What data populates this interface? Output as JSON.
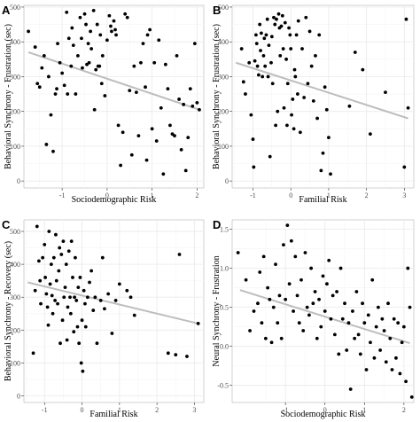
{
  "colors": {
    "panel_bg": "#ffffff",
    "grid_major": "#ebebeb",
    "grid_minor": "#f5f5f5",
    "point": "#000000",
    "fit_line": "#bdbdbd",
    "frame": "#b3b3b3"
  },
  "chart_data": [
    {
      "type": "scatter",
      "panel_label": "A",
      "xlabel": "Sociodemographic Risk",
      "ylabel": "Behavioral Synchrony - Frustration (sec)",
      "xlim": [
        -1.85,
        2.15
      ],
      "ylim": [
        -20,
        505
      ],
      "xticks": [
        -1,
        0,
        1,
        2
      ],
      "yticks": [
        0,
        100,
        200,
        300,
        400,
        500
      ],
      "grid": true,
      "fit_line": [
        [
          -1.75,
          370
        ],
        [
          2.05,
          205
        ]
      ],
      "points": [
        [
          -1.75,
          430
        ],
        [
          -1.6,
          385
        ],
        [
          -1.55,
          280
        ],
        [
          -1.5,
          270
        ],
        [
          -1.45,
          325
        ],
        [
          -1.4,
          360
        ],
        [
          -1.35,
          105
        ],
        [
          -1.3,
          300
        ],
        [
          -1.25,
          190
        ],
        [
          -1.2,
          85
        ],
        [
          -1.15,
          250
        ],
        [
          -1.12,
          265
        ],
        [
          -1.1,
          395
        ],
        [
          -1.05,
          340
        ],
        [
          -1.0,
          310
        ],
        [
          -0.95,
          275
        ],
        [
          -0.9,
          485
        ],
        [
          -0.88,
          250
        ],
        [
          -0.85,
          410
        ],
        [
          -0.8,
          330
        ],
        [
          -0.78,
          440
        ],
        [
          -0.75,
          390
        ],
        [
          -0.7,
          250
        ],
        [
          -0.65,
          360
        ],
        [
          -0.6,
          470
        ],
        [
          -0.57,
          410
        ],
        [
          -0.55,
          325
        ],
        [
          -0.5,
          480
        ],
        [
          -0.47,
          450
        ],
        [
          -0.45,
          335
        ],
        [
          -0.42,
          395
        ],
        [
          -0.4,
          340
        ],
        [
          -0.37,
          430
        ],
        [
          -0.35,
          380
        ],
        [
          -0.3,
          490
        ],
        [
          -0.28,
          205
        ],
        [
          -0.25,
          320
        ],
        [
          -0.22,
          450
        ],
        [
          -0.2,
          330
        ],
        [
          -0.17,
          330
        ],
        [
          -0.15,
          420
        ],
        [
          -0.12,
          280
        ],
        [
          -0.1,
          360
        ],
        [
          -0.05,
          245
        ],
        [
          0.0,
          405
        ],
        [
          0.05,
          475
        ],
        [
          0.08,
          445
        ],
        [
          0.1,
          430
        ],
        [
          0.15,
          460
        ],
        [
          0.18,
          435
        ],
        [
          0.2,
          420
        ],
        [
          0.25,
          160
        ],
        [
          0.3,
          45
        ],
        [
          0.35,
          140
        ],
        [
          0.4,
          480
        ],
        [
          0.45,
          470
        ],
        [
          0.5,
          260
        ],
        [
          0.55,
          75
        ],
        [
          0.6,
          330
        ],
        [
          0.65,
          255
        ],
        [
          0.7,
          130
        ],
        [
          0.75,
          340
        ],
        [
          0.8,
          395
        ],
        [
          0.85,
          270
        ],
        [
          0.88,
          60
        ],
        [
          0.9,
          420
        ],
        [
          0.95,
          435
        ],
        [
          1.0,
          150
        ],
        [
          1.05,
          340
        ],
        [
          1.1,
          115
        ],
        [
          1.15,
          405
        ],
        [
          1.2,
          210
        ],
        [
          1.25,
          20
        ],
        [
          1.3,
          335
        ],
        [
          1.35,
          265
        ],
        [
          1.4,
          160
        ],
        [
          1.45,
          135
        ],
        [
          1.5,
          130
        ],
        [
          1.55,
          360
        ],
        [
          1.6,
          235
        ],
        [
          1.65,
          90
        ],
        [
          1.7,
          220
        ],
        [
          1.75,
          30
        ],
        [
          1.8,
          125
        ],
        [
          1.85,
          265
        ],
        [
          1.9,
          215
        ],
        [
          1.95,
          395
        ],
        [
          2.0,
          225
        ],
        [
          2.05,
          205
        ]
      ]
    },
    {
      "type": "scatter",
      "panel_label": "B",
      "xlabel": "Familial Risk",
      "ylabel": "Behavioral Synchrony - Frustration (sec)",
      "xlim": [
        -1.55,
        3.25
      ],
      "ylim": [
        -20,
        505
      ],
      "xticks": [
        -1,
        0,
        1,
        2,
        3
      ],
      "yticks": [
        0,
        100,
        200,
        300,
        400,
        500
      ],
      "grid": true,
      "fit_line": [
        [
          -1.45,
          340
        ],
        [
          3.1,
          180
        ]
      ],
      "points": [
        [
          -1.3,
          380
        ],
        [
          -1.25,
          285
        ],
        [
          -1.2,
          250
        ],
        [
          -1.1,
          340
        ],
        [
          -1.05,
          190
        ],
        [
          -1.0,
          120
        ],
        [
          -0.98,
          40
        ],
        [
          -0.95,
          345
        ],
        [
          -0.92,
          420
        ],
        [
          -0.9,
          395
        ],
        [
          -0.88,
          330
        ],
        [
          -0.85,
          305
        ],
        [
          -0.82,
          450
        ],
        [
          -0.8,
          375
        ],
        [
          -0.78,
          425
        ],
        [
          -0.75,
          300
        ],
        [
          -0.72,
          360
        ],
        [
          -0.7,
          410
        ],
        [
          -0.68,
          330
        ],
        [
          -0.65,
          420
        ],
        [
          -0.62,
          465
        ],
        [
          -0.6,
          300
        ],
        [
          -0.58,
          390
        ],
        [
          -0.55,
          70
        ],
        [
          -0.52,
          340
        ],
        [
          -0.5,
          415
        ],
        [
          -0.48,
          280
        ],
        [
          -0.45,
          470
        ],
        [
          -0.42,
          450
        ],
        [
          -0.4,
          160
        ],
        [
          -0.38,
          465
        ],
        [
          -0.35,
          200
        ],
        [
          -0.32,
          480
        ],
        [
          -0.3,
          440
        ],
        [
          -0.28,
          360
        ],
        [
          -0.25,
          445
        ],
        [
          -0.22,
          475
        ],
        [
          -0.2,
          380
        ],
        [
          -0.18,
          210
        ],
        [
          -0.15,
          455
        ],
        [
          -0.12,
          350
        ],
        [
          -0.1,
          160
        ],
        [
          -0.08,
          280
        ],
        [
          -0.05,
          440
        ],
        [
          -0.02,
          420
        ],
        [
          0.0,
          380
        ],
        [
          0.02,
          190
        ],
        [
          0.05,
          235
        ],
        [
          0.08,
          150
        ],
        [
          0.1,
          320
        ],
        [
          0.12,
          300
        ],
        [
          0.15,
          420
        ],
        [
          0.18,
          250
        ],
        [
          0.2,
          460
        ],
        [
          0.25,
          140
        ],
        [
          0.3,
          380
        ],
        [
          0.35,
          240
        ],
        [
          0.4,
          470
        ],
        [
          0.45,
          280
        ],
        [
          0.5,
          430
        ],
        [
          0.55,
          330
        ],
        [
          0.6,
          230
        ],
        [
          0.65,
          360
        ],
        [
          0.7,
          180
        ],
        [
          0.75,
          420
        ],
        [
          0.8,
          30
        ],
        [
          0.85,
          80
        ],
        [
          0.9,
          270
        ],
        [
          0.95,
          205
        ],
        [
          1.0,
          125
        ],
        [
          1.05,
          20
        ],
        [
          1.55,
          215
        ],
        [
          1.7,
          370
        ],
        [
          1.9,
          320
        ],
        [
          2.1,
          135
        ],
        [
          2.5,
          255
        ],
        [
          3.0,
          40
        ],
        [
          3.05,
          465
        ],
        [
          3.1,
          210
        ]
      ]
    },
    {
      "type": "scatter",
      "panel_label": "C",
      "xlabel": "Familial Risk",
      "ylabel": "Behavioral Synchrony - Recovery (sec)",
      "xlim": [
        -1.55,
        3.25
      ],
      "ylim": [
        -20,
        535
      ],
      "xticks": [
        -1,
        0,
        1,
        2,
        3
      ],
      "yticks": [
        0,
        100,
        200,
        300,
        400,
        500
      ],
      "grid": true,
      "fit_line": [
        [
          -1.45,
          345
        ],
        [
          3.1,
          220
        ]
      ],
      "points": [
        [
          -1.3,
          130
        ],
        [
          -1.25,
          320
        ],
        [
          -1.2,
          515
        ],
        [
          -1.15,
          410
        ],
        [
          -1.12,
          350
        ],
        [
          -1.1,
          280
        ],
        [
          -1.05,
          420
        ],
        [
          -1.0,
          460
        ],
        [
          -0.98,
          360
        ],
        [
          -0.95,
          310
        ],
        [
          -0.92,
          270
        ],
        [
          -0.9,
          215
        ],
        [
          -0.88,
          500
        ],
        [
          -0.85,
          340
        ],
        [
          -0.82,
          400
        ],
        [
          -0.8,
          305
        ],
        [
          -0.78,
          250
        ],
        [
          -0.75,
          420
        ],
        [
          -0.72,
          290
        ],
        [
          -0.7,
          490
        ],
        [
          -0.68,
          350
        ],
        [
          -0.65,
          280
        ],
        [
          -0.62,
          380
        ],
        [
          -0.6,
          450
        ],
        [
          -0.58,
          160
        ],
        [
          -0.55,
          430
        ],
        [
          -0.52,
          230
        ],
        [
          -0.5,
          470
        ],
        [
          -0.48,
          300
        ],
        [
          -0.45,
          330
        ],
        [
          -0.42,
          400
        ],
        [
          -0.4,
          170
        ],
        [
          -0.38,
          270
        ],
        [
          -0.35,
          440
        ],
        [
          -0.32,
          300
        ],
        [
          -0.3,
          250
        ],
        [
          -0.28,
          470
        ],
        [
          -0.25,
          360
        ],
        [
          -0.22,
          195
        ],
        [
          -0.2,
          300
        ],
        [
          -0.18,
          420
        ],
        [
          -0.15,
          290
        ],
        [
          -0.12,
          210
        ],
        [
          -0.1,
          330
        ],
        [
          -0.08,
          160
        ],
        [
          -0.05,
          360
        ],
        [
          -0.02,
          100
        ],
        [
          0.0,
          230
        ],
        [
          0.02,
          75
        ],
        [
          0.05,
          320
        ],
        [
          0.08,
          280
        ],
        [
          0.1,
          210
        ],
        [
          0.15,
          300
        ],
        [
          0.2,
          345
        ],
        [
          0.25,
          380
        ],
        [
          0.3,
          260
        ],
        [
          0.35,
          300
        ],
        [
          0.4,
          160
        ],
        [
          0.5,
          290
        ],
        [
          0.55,
          420
        ],
        [
          0.6,
          265
        ],
        [
          0.7,
          310
        ],
        [
          0.8,
          190
        ],
        [
          0.9,
          290
        ],
        [
          1.0,
          340
        ],
        [
          1.2,
          320
        ],
        [
          1.3,
          300
        ],
        [
          1.4,
          245
        ],
        [
          2.3,
          130
        ],
        [
          2.5,
          125
        ],
        [
          2.6,
          430
        ],
        [
          2.8,
          120
        ],
        [
          3.1,
          220
        ]
      ]
    },
    {
      "type": "scatter",
      "panel_label": "D",
      "xlabel": "Sociodemographic Risk",
      "ylabel": "Neural Synchrony - Frustration",
      "xlim": [
        -2.35,
        2.25
      ],
      "ylim": [
        -0.72,
        1.62
      ],
      "xticks": [
        -1,
        0,
        1,
        2
      ],
      "yticks": [
        -0.5,
        0.0,
        0.5,
        1.0,
        1.5
      ],
      "ytick_labels": [
        "-0.5",
        "0.0",
        "0.5",
        "1.0",
        "1.5"
      ],
      "grid": true,
      "fit_line": [
        [
          -2.15,
          0.72
        ],
        [
          2.15,
          0.04
        ]
      ],
      "points": [
        [
          -2.2,
          1.2
        ],
        [
          -2.0,
          0.85
        ],
        [
          -1.9,
          0.2
        ],
        [
          -1.8,
          0.45
        ],
        [
          -1.7,
          0.55
        ],
        [
          -1.65,
          0.95
        ],
        [
          -1.6,
          0.3
        ],
        [
          -1.55,
          1.15
        ],
        [
          -1.5,
          0.1
        ],
        [
          -1.45,
          0.75
        ],
        [
          -1.4,
          0.6
        ],
        [
          -1.35,
          0.05
        ],
        [
          -1.3,
          0.5
        ],
        [
          -1.25,
          1.05
        ],
        [
          -1.2,
          0.3
        ],
        [
          -1.15,
          0.65
        ],
        [
          -1.1,
          0.1
        ],
        [
          -1.05,
          1.3
        ],
        [
          -1.0,
          0.6
        ],
        [
          -0.95,
          1.55
        ],
        [
          -0.9,
          0.8
        ],
        [
          -0.85,
          1.35
        ],
        [
          -0.8,
          0.45
        ],
        [
          -0.75,
          1.15
        ],
        [
          -0.7,
          0.65
        ],
        [
          -0.65,
          0.3
        ],
        [
          -0.6,
          0.85
        ],
        [
          -0.55,
          0.2
        ],
        [
          -0.5,
          1.2
        ],
        [
          -0.45,
          0.5
        ],
        [
          -0.4,
          0.4
        ],
        [
          -0.35,
          1.0
        ],
        [
          -0.3,
          0.55
        ],
        [
          -0.25,
          0.7
        ],
        [
          -0.2,
          0.1
        ],
        [
          -0.15,
          0.6
        ],
        [
          -0.1,
          0.25
        ],
        [
          -0.05,
          0.9
        ],
        [
          0.0,
          0.45
        ],
        [
          0.05,
          0.8
        ],
        [
          0.1,
          1.1
        ],
        [
          0.15,
          0.35
        ],
        [
          0.2,
          0.65
        ],
        [
          0.25,
          0.15
        ],
        [
          0.3,
          0.7
        ],
        [
          0.35,
          -0.1
        ],
        [
          0.4,
          1.0
        ],
        [
          0.45,
          0.35
        ],
        [
          0.5,
          0.55
        ],
        [
          0.55,
          -0.05
        ],
        [
          0.6,
          0.3
        ],
        [
          0.65,
          -0.55
        ],
        [
          0.7,
          0.45
        ],
        [
          0.75,
          0.1
        ],
        [
          0.8,
          0.7
        ],
        [
          0.85,
          0.15
        ],
        [
          0.9,
          -0.1
        ],
        [
          0.95,
          0.55
        ],
        [
          1.0,
          0.3
        ],
        [
          1.05,
          -0.3
        ],
        [
          1.1,
          0.4
        ],
        [
          1.15,
          0.05
        ],
        [
          1.2,
          0.85
        ],
        [
          1.25,
          -0.15
        ],
        [
          1.3,
          0.25
        ],
        [
          1.35,
          0.5
        ],
        [
          1.4,
          -0.05
        ],
        [
          1.45,
          0.35
        ],
        [
          1.5,
          0.2
        ],
        [
          1.55,
          -0.2
        ],
        [
          1.6,
          0.55
        ],
        [
          1.65,
          0.1
        ],
        [
          1.7,
          -0.3
        ],
        [
          1.75,
          0.35
        ],
        [
          1.8,
          -0.15
        ],
        [
          1.85,
          0.3
        ],
        [
          1.9,
          -0.35
        ],
        [
          1.95,
          0.05
        ],
        [
          2.0,
          0.25
        ],
        [
          2.05,
          -0.45
        ],
        [
          2.1,
          1.0
        ],
        [
          2.15,
          0.5
        ],
        [
          2.2,
          -0.65
        ]
      ]
    }
  ]
}
